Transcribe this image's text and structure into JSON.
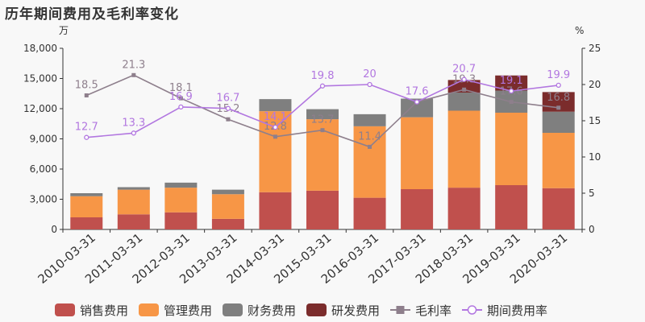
{
  "title": "历年期间费用及毛利率变化",
  "chart_data": {
    "type": "bar",
    "stacked": true,
    "title": "历年期间费用及毛利率变化",
    "categories": [
      "2010-03-31",
      "2011-03-31",
      "2012-03-31",
      "2013-03-31",
      "2014-03-31",
      "2015-03-31",
      "2016-03-31",
      "2017-03-31",
      "2018-03-31",
      "2019-03-31",
      "2020-03-31"
    ],
    "y_left": {
      "unit": "万",
      "ylim": [
        0,
        18000
      ],
      "ticks": [
        0,
        3000,
        6000,
        9000,
        12000,
        15000,
        18000
      ],
      "tick_labels": [
        "0",
        "3,000",
        "6,000",
        "9,000",
        "12,000",
        "15,000",
        "18,000"
      ]
    },
    "y_right": {
      "unit": "%",
      "ylim": [
        0,
        25
      ],
      "ticks": [
        0,
        5,
        10,
        15,
        20,
        25
      ],
      "tick_labels": [
        "0",
        "5",
        "10",
        "15",
        "20",
        "25"
      ]
    },
    "bar_series": [
      {
        "name": "销售费用",
        "color": "#c0504d",
        "values": [
          1200,
          1500,
          1700,
          1050,
          3700,
          3850,
          3150,
          4000,
          4150,
          4400,
          4100
        ]
      },
      {
        "name": "管理费用",
        "color": "#f79646",
        "values": [
          2100,
          2450,
          2450,
          2450,
          8050,
          7100,
          7100,
          7150,
          7650,
          7200,
          5500
        ]
      },
      {
        "name": "财务费用",
        "color": "#7f7f7f",
        "values": [
          300,
          250,
          500,
          450,
          1200,
          1000,
          1200,
          1850,
          1800,
          2200,
          2100
        ]
      },
      {
        "name": "研发费用",
        "color": "#7b2c2c",
        "values": [
          0,
          0,
          0,
          0,
          0,
          0,
          0,
          0,
          1250,
          1500,
          1950
        ]
      }
    ],
    "line_series": [
      {
        "name": "毛利率",
        "color": "#8e7f8c",
        "marker": "square",
        "axis": "right",
        "values": [
          18.5,
          21.3,
          18.1,
          15.2,
          12.8,
          13.7,
          11.4,
          17.6,
          19.3,
          17.6,
          16.8
        ],
        "labels": [
          "18.5",
          "21.3",
          "18.1",
          "15.2",
          "12.8",
          "13.7",
          "11.4",
          "",
          "19.3",
          "17.6",
          "16.8"
        ]
      },
      {
        "name": "期间费用率",
        "color": "#b277e0",
        "marker": "circle",
        "axis": "right",
        "values": [
          12.7,
          13.3,
          16.9,
          16.7,
          14.1,
          19.8,
          20.0,
          17.6,
          20.7,
          19.1,
          19.9
        ],
        "labels": [
          "12.7",
          "13.3",
          "16.9",
          "16.7",
          "14.1",
          "19.8",
          "20",
          "17.6",
          "20.7",
          "19.1",
          "19.9"
        ]
      }
    ],
    "legend": {
      "position": "bottom"
    },
    "grid": false
  }
}
